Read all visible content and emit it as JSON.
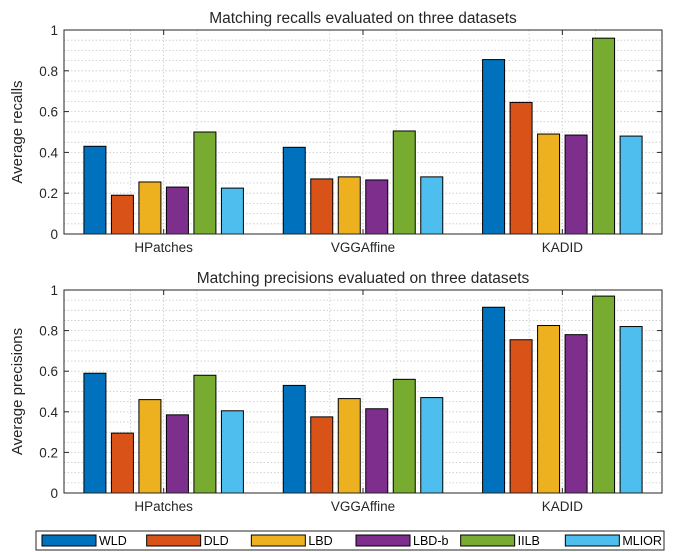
{
  "chart_data": [
    {
      "type": "bar",
      "title": "Matching recalls evaluated on three datasets",
      "xlabel": "",
      "ylabel": "Average recalls",
      "ylim": [
        0,
        1
      ],
      "yticks": [
        "0",
        "0.2",
        "0.4",
        "0.6",
        "0.8",
        "1"
      ],
      "grid": true,
      "categories": [
        "HPatches",
        "VGGAffine",
        "KADID"
      ],
      "series": [
        {
          "name": "WLD",
          "values": [
            0.43,
            0.425,
            0.855
          ]
        },
        {
          "name": "DLD",
          "values": [
            0.19,
            0.27,
            0.645
          ]
        },
        {
          "name": "LBD",
          "values": [
            0.255,
            0.28,
            0.49
          ]
        },
        {
          "name": "LBD-b",
          "values": [
            0.23,
            0.265,
            0.485
          ]
        },
        {
          "name": "IILB",
          "values": [
            0.5,
            0.505,
            0.96
          ]
        },
        {
          "name": "MLIOR",
          "values": [
            0.225,
            0.28,
            0.48
          ]
        }
      ]
    },
    {
      "type": "bar",
      "title": "Matching precisions evaluated on three datasets",
      "xlabel": "",
      "ylabel": "Average precisions",
      "ylim": [
        0,
        1
      ],
      "yticks": [
        "0",
        "0.2",
        "0.4",
        "0.6",
        "0.8",
        "1"
      ],
      "grid": true,
      "categories": [
        "HPatches",
        "VGGAffine",
        "KADID"
      ],
      "series": [
        {
          "name": "WLD",
          "values": [
            0.59,
            0.53,
            0.915
          ]
        },
        {
          "name": "DLD",
          "values": [
            0.295,
            0.375,
            0.755
          ]
        },
        {
          "name": "LBD",
          "values": [
            0.46,
            0.465,
            0.825
          ]
        },
        {
          "name": "LBD-b",
          "values": [
            0.385,
            0.415,
            0.78
          ]
        },
        {
          "name": "IILB",
          "values": [
            0.58,
            0.56,
            0.97
          ]
        },
        {
          "name": "MLIOR",
          "values": [
            0.405,
            0.47,
            0.82
          ]
        }
      ]
    }
  ],
  "legend": {
    "placement": "bottom",
    "entries": [
      "WLD",
      "DLD",
      "LBD",
      "LBD-b",
      "IILB",
      "MLIOR"
    ]
  },
  "colors": [
    "#0072BD",
    "#D95319",
    "#EDB120",
    "#7E2F8E",
    "#77AC30",
    "#4DBEEE"
  ]
}
